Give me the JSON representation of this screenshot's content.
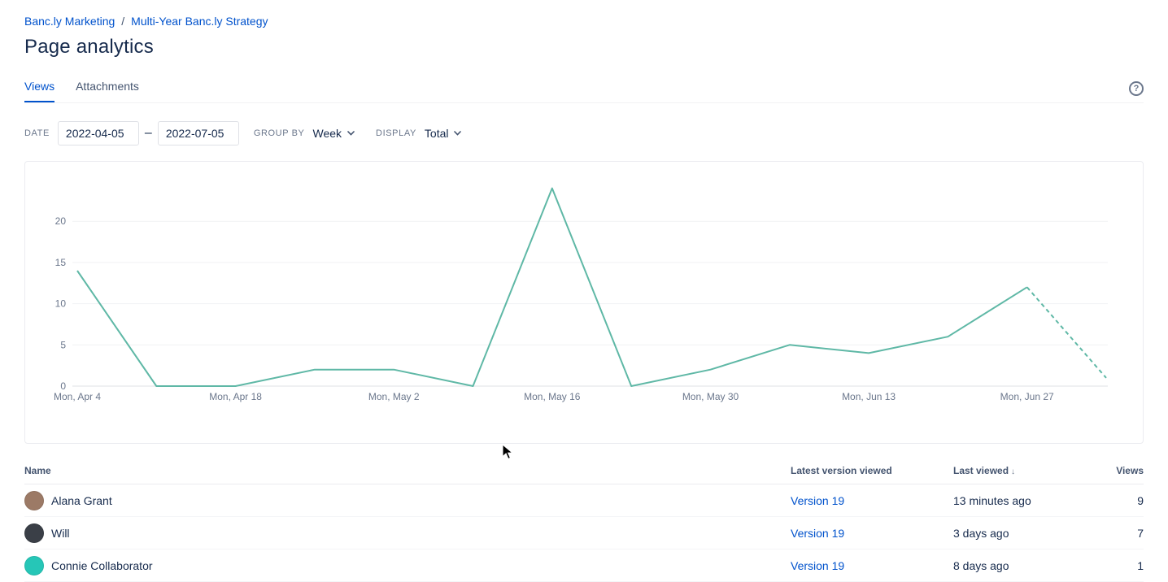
{
  "breadcrumb": {
    "separator": "/",
    "items": [
      {
        "label": "Banc.ly Marketing"
      },
      {
        "label": "Multi-Year Banc.ly Strategy"
      }
    ]
  },
  "page": {
    "title": "Page analytics"
  },
  "tabs": [
    {
      "label": "Views"
    },
    {
      "label": "Attachments"
    }
  ],
  "icons": {
    "help": "?",
    "sort_descending": "↓"
  },
  "filters": {
    "date_label": "DATE",
    "date_from": "2022-04-05",
    "date_to": "2022-07-05",
    "range_separator": "–",
    "group_by_label": "GROUP BY",
    "group_by_value": "Week",
    "display_label": "DISPLAY",
    "display_value": "Total"
  },
  "chart_data": {
    "type": "line",
    "title": "",
    "xlabel": "",
    "ylabel": "",
    "x": [
      "Mon, Apr 4",
      "Mon, Apr 11",
      "Mon, Apr 18",
      "Mon, Apr 25",
      "Mon, May 2",
      "Mon, May 9",
      "Mon, May 16",
      "Mon, May 23",
      "Mon, May 30",
      "Mon, Jun 6",
      "Mon, Jun 13",
      "Mon, Jun 20",
      "Mon, Jun 27",
      "Mon, Jul 4"
    ],
    "values": [
      14,
      0,
      0,
      2,
      2,
      0,
      24,
      0,
      2,
      5,
      4,
      6,
      12,
      1
    ],
    "x_tick_labels": [
      "Mon, Apr 4",
      "Mon, Apr 18",
      "Mon, May 2",
      "Mon, May 16",
      "Mon, May 30",
      "Mon, Jun 13",
      "Mon, Jun 27"
    ],
    "y_ticks": [
      0,
      5,
      10,
      15,
      20
    ],
    "ylim": [
      0,
      25
    ],
    "grid": true,
    "legend": "none",
    "line_color": "#5FB8A6",
    "last_segment_dashed": true
  },
  "table": {
    "columns": [
      "Name",
      "Latest version viewed",
      "Last viewed",
      "Views"
    ],
    "rows": [
      {
        "name": "Alana Grant",
        "version": "Version 19",
        "last_viewed": "13 minutes ago",
        "views": "9",
        "avatar_color": "#9C7A66"
      },
      {
        "name": "Will",
        "version": "Version 19",
        "last_viewed": "3 days ago",
        "views": "7",
        "avatar_color": "#3A3F47"
      },
      {
        "name": "Connie Collaborator",
        "version": "Version 19",
        "last_viewed": "8 days ago",
        "views": "1",
        "avatar_color": "#26C6B7"
      }
    ]
  }
}
